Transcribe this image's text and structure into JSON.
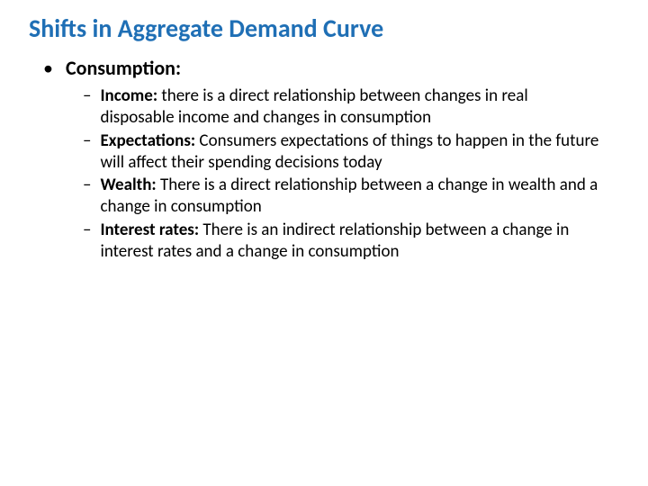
{
  "slide": {
    "title": "Shifts in Aggregate Demand Curve",
    "title_color": "#1f6fb5",
    "bullet1": {
      "marker": "•",
      "text": "Consumption:"
    },
    "sub_bullets": [
      {
        "marker": "–",
        "label": "Income:",
        "body": " there is a direct relationship between changes in real disposable income and changes in consumption"
      },
      {
        "marker": "–",
        "label": "Expectations:",
        "body": " Consumers expectations of things to happen in the future will affect their spending decisions today"
      },
      {
        "marker": "–",
        "label": "Wealth:",
        "body": " There is a direct relationship between a change in wealth and a change in consumption"
      },
      {
        "marker": "–",
        "label": "Interest rates:",
        "body": " There is an indirect relationship between a change in interest rates and a change in consumption"
      }
    ],
    "background_color": "#ffffff",
    "text_color": "#000000",
    "title_fontsize": 28,
    "l1_fontsize": 22,
    "l2_fontsize": 19
  }
}
